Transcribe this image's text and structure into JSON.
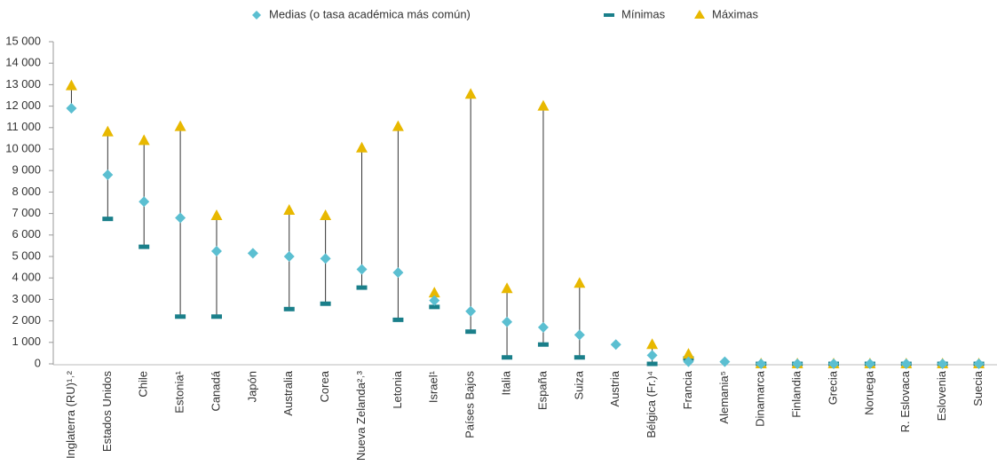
{
  "chart_data": {
    "type": "dot",
    "categories": [
      "Inglaterra (RU)¹˒²",
      "Estados Unidos",
      "Chile",
      "Estonia¹",
      "Canadá",
      "Japón",
      "Australia",
      "Corea",
      "Nueva Zelanda²˒³",
      "Letonia",
      "Israel¹",
      "Países Bajos",
      "Italia",
      "España",
      "Suiza",
      "Austria",
      "Bélgica (Fr.)⁴",
      "Francia",
      "Alemania⁵",
      "Dinamarca",
      "Finlandia",
      "Grecia",
      "Noruega",
      "R. Eslovaca",
      "Eslovenia",
      "Suecia"
    ],
    "series": [
      {
        "name": "Medias (o tasa académica más común)",
        "color": "#5bbfd1",
        "marker": "diamond",
        "values": [
          11900,
          8800,
          7550,
          6800,
          5250,
          5150,
          5000,
          4900,
          4400,
          4250,
          2950,
          2450,
          1950,
          1700,
          1350,
          900,
          400,
          100,
          100,
          0,
          0,
          0,
          0,
          0,
          0,
          0
        ]
      },
      {
        "name": "Mínimas",
        "color": "#1a7f8a",
        "marker": "dash",
        "values": [
          null,
          6750,
          5450,
          2200,
          2200,
          null,
          2550,
          2800,
          3550,
          2050,
          2650,
          1500,
          300,
          900,
          300,
          null,
          0,
          250,
          null,
          0,
          0,
          0,
          0,
          0,
          0,
          0
        ]
      },
      {
        "name": "Máximas",
        "color": "#e8b800",
        "marker": "triangle",
        "values": [
          12950,
          10800,
          10400,
          11050,
          6900,
          null,
          7150,
          6900,
          10050,
          11050,
          3300,
          12550,
          3500,
          12000,
          3750,
          null,
          900,
          450,
          null,
          0,
          0,
          0,
          0,
          0,
          0,
          0
        ]
      }
    ],
    "ylim": [
      0,
      15000
    ],
    "yticks": [
      0,
      {
        "value": 1000,
        "label": "1 000"
      },
      {
        "value": 2000,
        "label": "2 000"
      },
      {
        "value": 3000,
        "label": "3 000"
      },
      {
        "value": 4000,
        "label": "4 000"
      },
      {
        "value": 5000,
        "label": "5 000"
      },
      {
        "value": 6000,
        "label": "6 000"
      },
      {
        "value": 7000,
        "label": "7 000"
      },
      {
        "value": 8000,
        "label": "8 000"
      },
      {
        "value": 9000,
        "label": "9 000"
      },
      {
        "value": 10000,
        "label": "10 000"
      },
      {
        "value": 11000,
        "label": "11 000"
      },
      {
        "value": 12000,
        "label": "12 000"
      },
      {
        "value": 13000,
        "label": "13 000"
      },
      {
        "value": 14000,
        "label": "14 000"
      },
      {
        "value": 15000,
        "label": "15 000"
      }
    ]
  }
}
